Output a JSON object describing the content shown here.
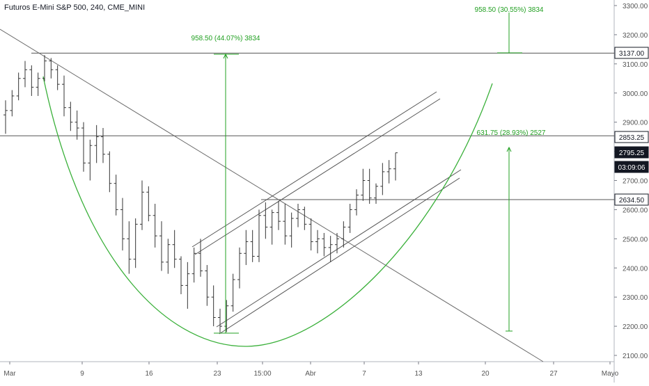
{
  "chart_data": {
    "type": "candlestick",
    "title": "Futuros E-Mini S&P 500, 240, CME_MINI",
    "price_axis": {
      "ticks": [
        "3300.00",
        "3200.00",
        "3100.00",
        "3000.00",
        "2900.00",
        "2800.00",
        "2700.00",
        "2600.00",
        "2500.00",
        "2400.00",
        "2300.00",
        "2200.00",
        "2100.00"
      ],
      "range": [
        2095,
        3315
      ]
    },
    "time_axis": {
      "labels": [
        "Mar",
        "9",
        "16",
        "23",
        "15:00",
        "Abr",
        "7",
        "13",
        "20",
        "27",
        "Mayo"
      ]
    },
    "price_labels": [
      {
        "value": "3137.00",
        "style": "outline"
      },
      {
        "value": "2853.25",
        "style": "outline"
      },
      {
        "value": "2795.25",
        "style": "dark"
      },
      {
        "value": "03:09:06",
        "style": "dark"
      },
      {
        "value": "2634.50",
        "style": "outline"
      }
    ],
    "horizontal_levels": [
      3137.0,
      2853.25,
      2634.5
    ],
    "annotations": [
      {
        "text": "958.50 (44.07%) 3834",
        "color": "#22a022"
      },
      {
        "text": "958.50 (30.55%) 3834",
        "color": "#22a022"
      },
      {
        "text": "631.75 (28.93%) 2527",
        "color": "#22a022"
      }
    ],
    "series": [
      {
        "values": [
          [
            2925,
            2975,
            2860,
            2940
          ],
          [
            2940,
            3010,
            2920,
            2990
          ],
          [
            2990,
            3070,
            2975,
            3050
          ],
          [
            3050,
            3110,
            3020,
            3080
          ],
          [
            3080,
            3095,
            2990,
            3020
          ],
          [
            3020,
            3070,
            2990,
            3050
          ],
          [
            3050,
            3130,
            3040,
            3110
          ],
          [
            3110,
            3120,
            3050,
            3080
          ],
          [
            3080,
            3095,
            3010,
            3030
          ],
          [
            3030,
            3060,
            2920,
            2950
          ],
          [
            2950,
            2970,
            2870,
            2900
          ],
          [
            2900,
            2940,
            2840,
            2880
          ],
          [
            2880,
            2900,
            2730,
            2760
          ],
          [
            2760,
            2840,
            2700,
            2820
          ],
          [
            2820,
            2890,
            2760,
            2850
          ],
          [
            2850,
            2880,
            2760,
            2790
          ],
          [
            2790,
            2800,
            2660,
            2690
          ],
          [
            2690,
            2720,
            2580,
            2600
          ],
          [
            2600,
            2640,
            2460,
            2500
          ],
          [
            2500,
            2560,
            2380,
            2430
          ],
          [
            2430,
            2570,
            2400,
            2550
          ],
          [
            2550,
            2700,
            2530,
            2660
          ],
          [
            2660,
            2680,
            2560,
            2580
          ],
          [
            2580,
            2620,
            2470,
            2510
          ],
          [
            2510,
            2560,
            2390,
            2420
          ],
          [
            2420,
            2500,
            2380,
            2480
          ],
          [
            2480,
            2530,
            2400,
            2430
          ],
          [
            2430,
            2440,
            2310,
            2340
          ],
          [
            2340,
            2420,
            2260,
            2380
          ],
          [
            2380,
            2470,
            2350,
            2450
          ],
          [
            2450,
            2500,
            2370,
            2390
          ],
          [
            2390,
            2410,
            2270,
            2300
          ],
          [
            2300,
            2340,
            2200,
            2230
          ],
          [
            2230,
            2260,
            2178,
            2200
          ],
          [
            2200,
            2290,
            2180,
            2270
          ],
          [
            2270,
            2380,
            2250,
            2360
          ],
          [
            2360,
            2470,
            2330,
            2450
          ],
          [
            2450,
            2530,
            2410,
            2490
          ],
          [
            2490,
            2530,
            2420,
            2440
          ],
          [
            2440,
            2600,
            2420,
            2580
          ],
          [
            2580,
            2625,
            2500,
            2540
          ],
          [
            2540,
            2600,
            2480,
            2590
          ],
          [
            2590,
            2630,
            2530,
            2560
          ],
          [
            2560,
            2620,
            2480,
            2510
          ],
          [
            2510,
            2590,
            2470,
            2570
          ],
          [
            2570,
            2620,
            2540,
            2600
          ],
          [
            2600,
            2610,
            2530,
            2550
          ],
          [
            2550,
            2570,
            2460,
            2490
          ],
          [
            2490,
            2530,
            2450,
            2500
          ],
          [
            2500,
            2520,
            2440,
            2470
          ],
          [
            2470,
            2510,
            2420,
            2480
          ],
          [
            2480,
            2520,
            2450,
            2500
          ],
          [
            2500,
            2560,
            2470,
            2540
          ],
          [
            2540,
            2620,
            2520,
            2600
          ],
          [
            2600,
            2670,
            2580,
            2650
          ],
          [
            2650,
            2740,
            2630,
            2700
          ],
          [
            2700,
            2740,
            2620,
            2640
          ],
          [
            2640,
            2690,
            2620,
            2680
          ],
          [
            2680,
            2760,
            2650,
            2730
          ],
          [
            2730,
            2770,
            2690,
            2740
          ],
          [
            2740,
            2795,
            2700,
            2795
          ]
        ]
      }
    ]
  }
}
